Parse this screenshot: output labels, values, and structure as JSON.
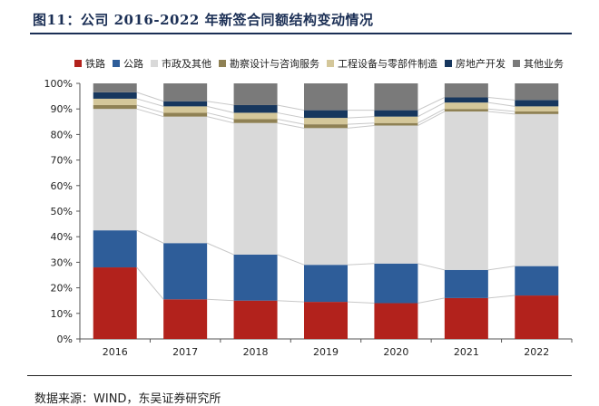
{
  "figure": {
    "title": "图11：公司 2016-2022 年新签合同额结构变动情况",
    "source": "数据来源：WIND，东吴证券研究所"
  },
  "chart_data": {
    "type": "bar",
    "stacked": true,
    "percent": true,
    "categories": [
      "2016",
      "2017",
      "2018",
      "2019",
      "2020",
      "2021",
      "2022"
    ],
    "ylim": [
      0,
      100
    ],
    "yticks": [
      "0%",
      "10%",
      "20%",
      "30%",
      "40%",
      "50%",
      "60%",
      "70%",
      "80%",
      "90%",
      "100%"
    ],
    "legend_position": "top",
    "series": [
      {
        "name": "铁路",
        "color": "#b2221c",
        "values": [
          28,
          15.5,
          15,
          14.5,
          14,
          16,
          17
        ]
      },
      {
        "name": "公路",
        "color": "#2e5d99",
        "values": [
          14.5,
          22,
          18,
          14.5,
          15.5,
          11,
          11.5
        ]
      },
      {
        "name": "市政及其他",
        "color": "#d9d9d9",
        "values": [
          47.5,
          49.5,
          51.5,
          53.5,
          54,
          62,
          59.5
        ]
      },
      {
        "name": "勘察设计与咨询服务",
        "color": "#8f8154",
        "values": [
          1.5,
          1.5,
          1.5,
          1.5,
          1,
          1,
          1
        ]
      },
      {
        "name": "工程设备与零部件制造",
        "color": "#d4c79a",
        "values": [
          2.5,
          2.5,
          2.5,
          2.5,
          2.5,
          2.5,
          2
        ]
      },
      {
        "name": "房地产开发",
        "color": "#17375e",
        "values": [
          2.5,
          2,
          3,
          3,
          2.5,
          2,
          2.5
        ]
      },
      {
        "name": "其他业务",
        "color": "#7a7a7a",
        "values": [
          3.5,
          7,
          8.5,
          10.5,
          10.5,
          5.5,
          6.5
        ]
      }
    ]
  }
}
